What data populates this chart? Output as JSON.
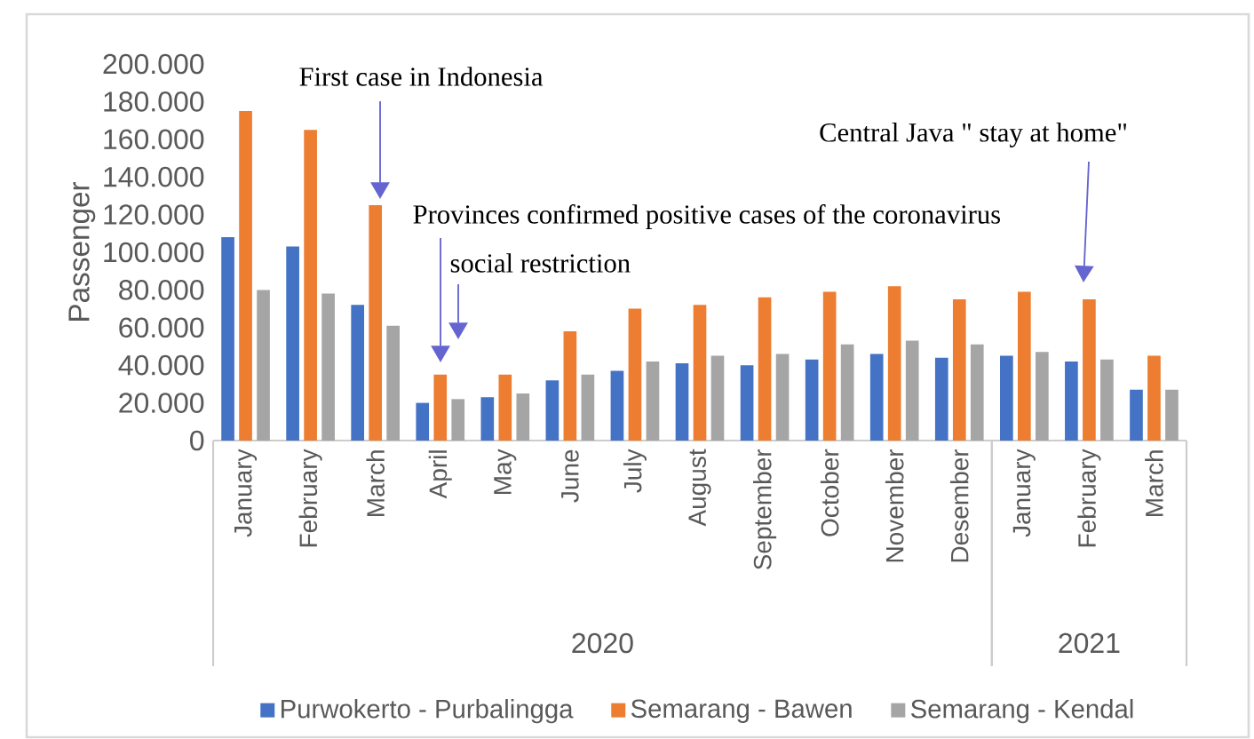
{
  "chart_data": {
    "type": "bar",
    "ylabel": "Passenger",
    "categories": [
      "January",
      "February",
      "March",
      "April",
      "May",
      "June",
      "July",
      "August",
      "September",
      "October",
      "November",
      "Desember",
      "January",
      "February",
      "March"
    ],
    "series": [
      {
        "name": "Purwokerto - Purbalingga",
        "color": "#4472c4",
        "values": [
          108000,
          103000,
          72000,
          20000,
          23000,
          32000,
          37000,
          41000,
          40000,
          43000,
          46000,
          44000,
          45000,
          42000,
          27000
        ]
      },
      {
        "name": "Semarang - Bawen",
        "color": "#ed7d31",
        "values": [
          175000,
          165000,
          125000,
          35000,
          35000,
          58000,
          70000,
          72000,
          76000,
          79000,
          82000,
          75000,
          79000,
          75000,
          45000
        ]
      },
      {
        "name": "Semarang - Kendal",
        "color": "#a5a5a5",
        "values": [
          80000,
          78000,
          61000,
          22000,
          25000,
          35000,
          42000,
          45000,
          46000,
          51000,
          53000,
          51000,
          47000,
          43000,
          27000
        ]
      }
    ],
    "ylim": [
      0,
      200000
    ],
    "yticks": [
      0,
      {
        "value": 20000,
        "label": "20.000"
      },
      {
        "value": 40000,
        "label": "40.000"
      },
      {
        "value": 60000,
        "label": "60.000"
      },
      {
        "value": 80000,
        "label": "80.000"
      },
      {
        "value": 100000,
        "label": "100.000"
      },
      {
        "value": 120000,
        "label": "120.000"
      },
      {
        "value": 140000,
        "label": "140.000"
      },
      {
        "value": 160000,
        "label": "160.000"
      },
      {
        "value": 180000,
        "label": "180.000"
      },
      {
        "value": 200000,
        "label": "200.000"
      }
    ],
    "legend": "bottom",
    "annotations": [
      "First case in Indonesia",
      "Provinces confirmed positive cases of the coronavirus",
      "social restriction",
      "Central Java \"  stay at home\"",
      "2020",
      "2021"
    ]
  }
}
